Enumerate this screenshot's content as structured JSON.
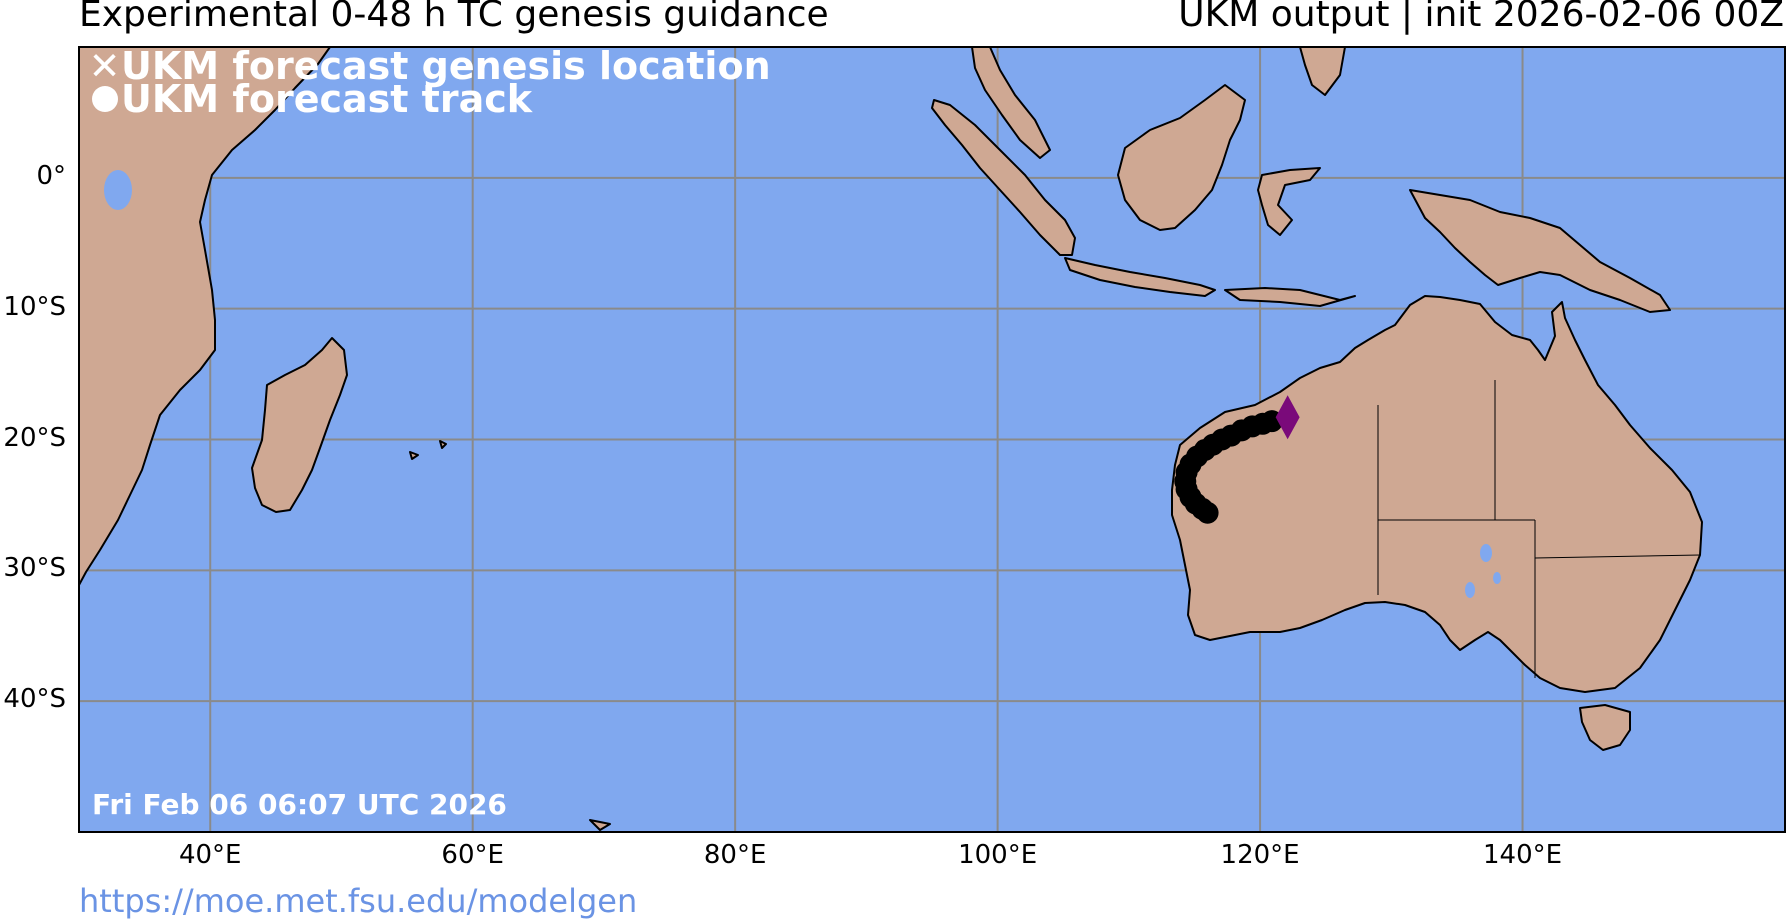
{
  "header": {
    "title_left": "Experimental 0-48 h TC genesis guidance",
    "title_right": "UKM output | init 2026-02-06 00Z"
  },
  "legend": {
    "genesis_label": "UKM forecast genesis location",
    "track_label": "UKM forecast track"
  },
  "axes": {
    "lat_labels": [
      "0°",
      "10°S",
      "20°S",
      "30°S",
      "40°S"
    ],
    "lon_labels": [
      "40°E",
      "60°E",
      "80°E",
      "100°E",
      "120°E",
      "140°E"
    ]
  },
  "map": {
    "ocean_color": "#80a8ef",
    "land_color": "#cfa893",
    "lake_color": "#80a8ef",
    "grid_color": "#8a8a8a",
    "genesis_marker_color": "#7a0a7a",
    "track_color": "#000000",
    "lon_range": [
      30,
      160
    ],
    "lat_range": [
      -50,
      10
    ]
  },
  "forecast": {
    "genesis": {
      "lon": 122.1,
      "lat": -18.3,
      "marker": "diamond"
    },
    "track": [
      {
        "lon": 120.9,
        "lat": -18.6
      },
      {
        "lon": 120.2,
        "lat": -18.8
      },
      {
        "lon": 119.4,
        "lat": -19.0
      },
      {
        "lon": 118.6,
        "lat": -19.3
      },
      {
        "lon": 117.8,
        "lat": -19.7
      },
      {
        "lon": 117.1,
        "lat": -20.0
      },
      {
        "lon": 116.4,
        "lat": -20.4
      },
      {
        "lon": 115.8,
        "lat": -20.8
      },
      {
        "lon": 115.2,
        "lat": -21.3
      },
      {
        "lon": 114.7,
        "lat": -21.9
      },
      {
        "lon": 114.4,
        "lat": -22.5
      },
      {
        "lon": 114.3,
        "lat": -23.2
      },
      {
        "lon": 114.4,
        "lat": -23.8
      },
      {
        "lon": 114.7,
        "lat": -24.4
      },
      {
        "lon": 115.1,
        "lat": -24.9
      },
      {
        "lon": 115.6,
        "lat": -25.3
      },
      {
        "lon": 116.0,
        "lat": -25.6
      }
    ]
  },
  "footer": {
    "timestamp": "Fri Feb 06 06:07 UTC 2026",
    "url": "https://moe.met.fsu.edu/modelgen"
  }
}
